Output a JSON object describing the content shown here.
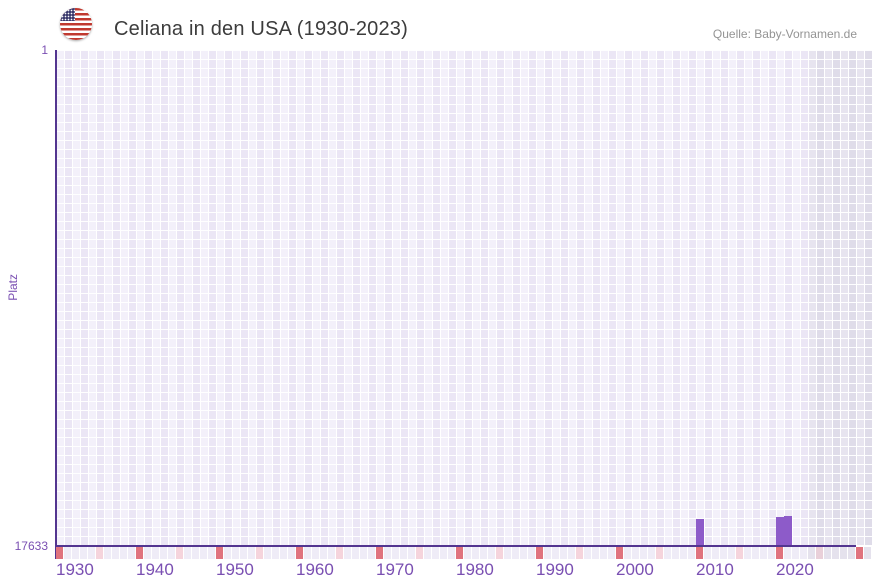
{
  "header": {
    "title": "Celiana in den USA (1930-2023)",
    "source": "Quelle: Baby-Vornamen.de",
    "flag_icon": "us-flag-icon"
  },
  "y_axis": {
    "label": "Platz",
    "top_tick": "1",
    "bottom_tick": "17633"
  },
  "chart_data": {
    "type": "bar",
    "title": "Celiana in den USA (1930-2023)",
    "xlabel": "",
    "ylabel": "Platz",
    "x_start": 1930,
    "x_end": 2023,
    "grid_end": 2031,
    "inactive_from": 2024,
    "y_inverted": true,
    "ylim": [
      1,
      17633
    ],
    "x_ticks": [
      1930,
      1940,
      1950,
      1960,
      1970,
      1980,
      1990,
      2000,
      2010,
      2020
    ],
    "points": [
      {
        "year": 2010,
        "rank": 16700
      },
      {
        "year": 2020,
        "rank": 16650
      },
      {
        "year": 2021,
        "rank": 16600
      }
    ],
    "decade_marker_years": [
      1930,
      1940,
      1950,
      1960,
      1970,
      1980,
      1990,
      2000,
      2010,
      2020,
      2030
    ],
    "half_decade_marker_years": [
      1935,
      1945,
      1955,
      1965,
      1975,
      1985,
      1995,
      2005,
      2015,
      2025
    ],
    "legend": null,
    "grid": true,
    "colors": {
      "bar": "#8d5bc9",
      "axis": "#533590",
      "tick_text": "#7a4fb2",
      "decade_marker": "#e0737e",
      "half_decade_marker": "#f5d4dc",
      "half_decade_marker_inactive": "#e9d0d9",
      "strip_default": "#efecf7",
      "strip_default_inactive": "#e5e2ed",
      "grid_cell": "#f0ecf8",
      "grid_cell_inactive": "#e3e0eb"
    }
  }
}
